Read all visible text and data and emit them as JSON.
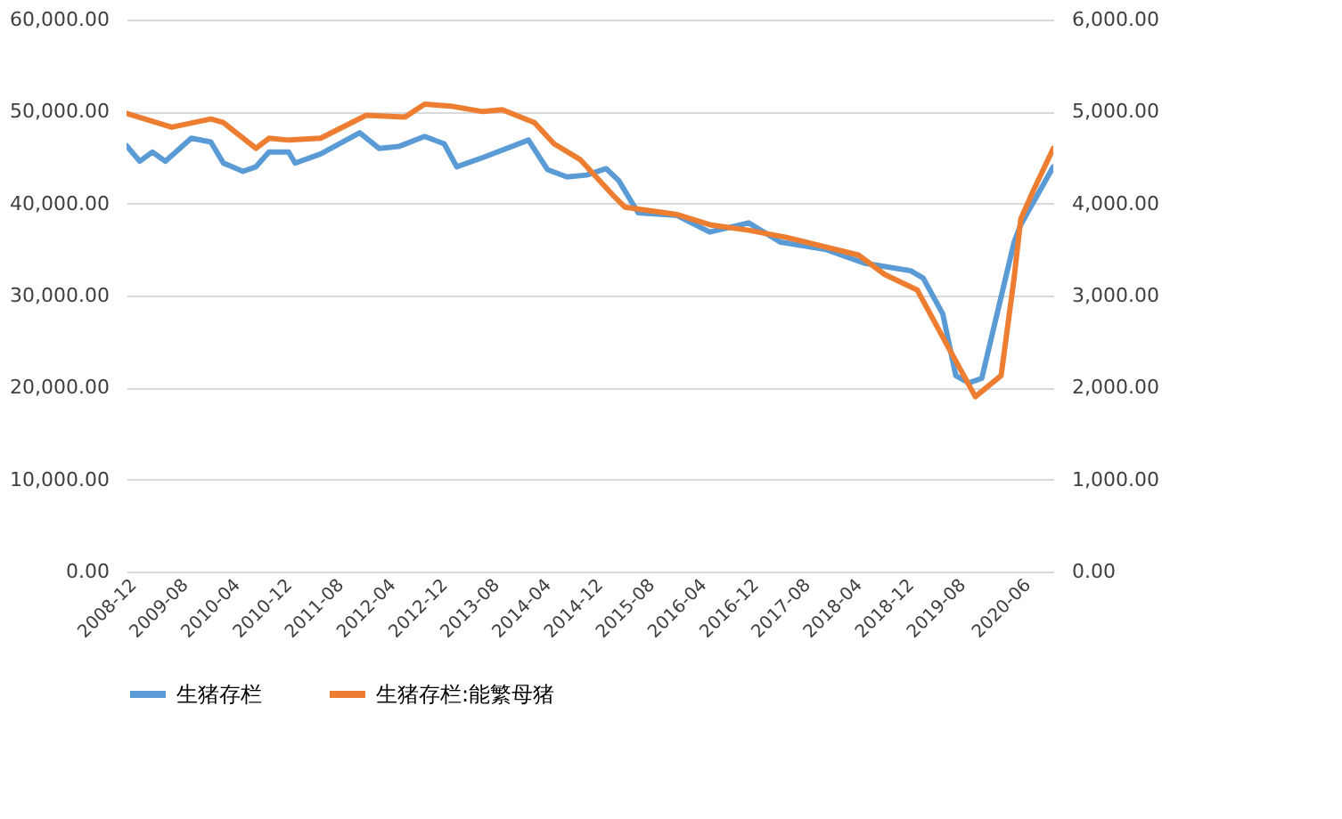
{
  "chart_data": {
    "type": "line",
    "xlim": [
      "2008-12",
      "2020-11"
    ],
    "xticks": [
      "2008-12",
      "2009-08",
      "2010-04",
      "2010-12",
      "2011-08",
      "2012-04",
      "2012-12",
      "2013-08",
      "2014-04",
      "2014-12",
      "2015-08",
      "2016-04",
      "2016-12",
      "2017-08",
      "2018-04",
      "2018-12",
      "2019-08",
      "2020-06"
    ],
    "ylim": [
      0,
      60000
    ],
    "yticks": [
      {
        "value": 0,
        "label": "0.00"
      },
      {
        "value": 10000,
        "label": "10,000.00"
      },
      {
        "value": 20000,
        "label": "20,000.00"
      },
      {
        "value": 30000,
        "label": "30,000.00"
      },
      {
        "value": 40000,
        "label": "40,000.00"
      },
      {
        "value": 50000,
        "label": "50,000.00"
      },
      {
        "value": 60000,
        "label": "60,000.00"
      }
    ],
    "y2lim": [
      0,
      6000
    ],
    "y2ticks": [
      {
        "value": 0,
        "label": "0.00"
      },
      {
        "value": 1000,
        "label": "1,000.00"
      },
      {
        "value": 2000,
        "label": "2,000.00"
      },
      {
        "value": 3000,
        "label": "3,000.00"
      },
      {
        "value": 4000,
        "label": "4,000.00"
      },
      {
        "value": 5000,
        "label": "5,000.00"
      },
      {
        "value": 6000,
        "label": "6,000.00"
      }
    ],
    "grid": "y",
    "legend": "bottom",
    "line_style": "solid",
    "marker": "none",
    "series": [
      {
        "name": "生猪存栏",
        "color": "#5b9bd5",
        "x": [
          "2008-12",
          "2009-02",
          "2009-04",
          "2009-06",
          "2009-10",
          "2010-01",
          "2010-03",
          "2010-06",
          "2010-08",
          "2010-10",
          "2011-01",
          "2011-02",
          "2011-06",
          "2011-12",
          "2012-03",
          "2012-06",
          "2012-10",
          "2013-01",
          "2013-03",
          "2013-07",
          "2014-02",
          "2014-05",
          "2014-08",
          "2014-11",
          "2015-02",
          "2015-04",
          "2015-07",
          "2016-01",
          "2016-06",
          "2016-12",
          "2017-05",
          "2017-12",
          "2018-06",
          "2019-01",
          "2019-03",
          "2019-06",
          "2019-08",
          "2019-10",
          "2019-12",
          "2020-05",
          "2020-06",
          "2020-11"
        ],
        "values": [
          46300,
          44600,
          45600,
          44600,
          47100,
          46700,
          44400,
          43500,
          44000,
          45600,
          45600,
          44400,
          45400,
          47700,
          46000,
          46200,
          47300,
          46500,
          44000,
          45000,
          46900,
          43700,
          42900,
          43100,
          43800,
          42500,
          39000,
          38700,
          36900,
          37900,
          35800,
          35000,
          33500,
          32700,
          31900,
          28000,
          21300,
          20500,
          21000,
          35800,
          37700,
          44000
        ]
      },
      {
        "name": "生猪存栏:能繁母猪",
        "color": "#ed7d31",
        "axis": "y2",
        "x": [
          "2008-12",
          "2009-07",
          "2010-01",
          "2010-03",
          "2010-08",
          "2010-10",
          "2011-01",
          "2011-06",
          "2012-01",
          "2012-07",
          "2012-10",
          "2013-02",
          "2013-07",
          "2013-10",
          "2014-03",
          "2014-06",
          "2014-10",
          "2015-03",
          "2015-05",
          "2016-01",
          "2016-06",
          "2016-12",
          "2017-06",
          "2018-05",
          "2018-09",
          "2019-02",
          "2019-07",
          "2019-11",
          "2020-03",
          "2020-05",
          "2020-06",
          "2020-08",
          "2020-11"
        ],
        "values": [
          4980,
          4830,
          4920,
          4880,
          4600,
          4710,
          4690,
          4710,
          4960,
          4940,
          5080,
          5060,
          5000,
          5020,
          4880,
          4650,
          4480,
          4100,
          3960,
          3880,
          3770,
          3710,
          3630,
          3440,
          3230,
          3060,
          2420,
          1900,
          2130,
          3190,
          3830,
          4150,
          4600
        ]
      }
    ]
  }
}
